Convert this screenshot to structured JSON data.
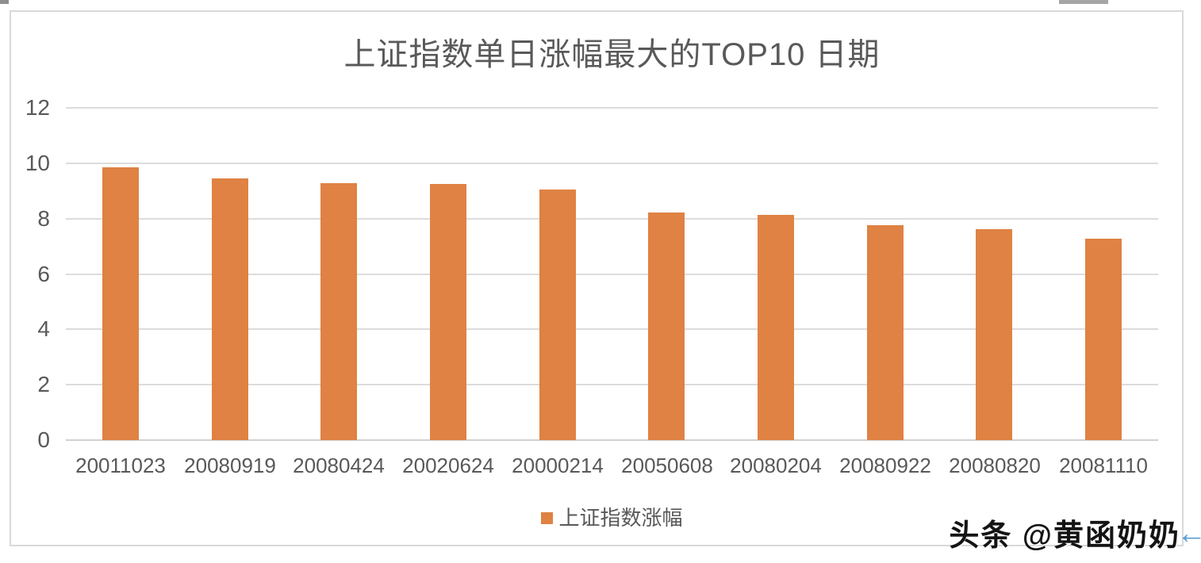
{
  "decorations": {
    "top_left_fragment_color": "#8f8f8f",
    "top_right_fragment_color": "#a5a5a5"
  },
  "watermark": {
    "text": "头条 @黄函奶奶",
    "arrow_glyph": "←",
    "arrow_color": "#5b9bd5"
  },
  "chart_data": {
    "type": "bar",
    "title": "上证指数单日涨幅最大的TOP10 日期",
    "categories": [
      "20011023",
      "20080919",
      "20080424",
      "20020624",
      "20000214",
      "20050608",
      "20080204",
      "20080922",
      "20080820",
      "20081110"
    ],
    "series": [
      {
        "name": "上证指数涨幅",
        "values": [
          9.86,
          9.46,
          9.29,
          9.25,
          9.05,
          8.21,
          8.13,
          7.77,
          7.63,
          7.27
        ]
      }
    ],
    "legend": {
      "label": "上证指数涨幅",
      "position": "bottom-center",
      "marker_color": "#df8243"
    },
    "xlabel": "",
    "ylabel": "",
    "ylim": [
      0,
      12
    ],
    "yticks": [
      0,
      2,
      4,
      6,
      8,
      10,
      12
    ],
    "grid": true,
    "bar_color": "#df8243",
    "gridline_color": "#dcdcdc",
    "axis_text_color": "#595959",
    "title_color": "#595959"
  }
}
